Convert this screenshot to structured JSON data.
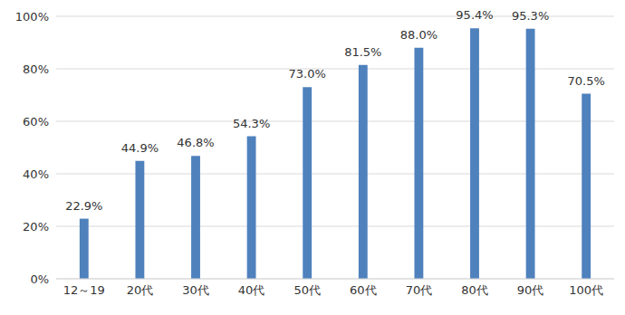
{
  "chart_data": {
    "type": "bar",
    "categories": [
      "12～19",
      "20代",
      "30代",
      "40代",
      "50代",
      "60代",
      "70代",
      "80代",
      "90代",
      "100代"
    ],
    "values": [
      22.9,
      44.9,
      46.8,
      54.3,
      73.0,
      81.5,
      88.0,
      95.4,
      95.3,
      70.5
    ],
    "value_labels": [
      "22.9%",
      "44.9%",
      "46.8%",
      "54.3%",
      "73.0%",
      "81.5%",
      "88.0%",
      "95.4%",
      "95.3%",
      "70.5%"
    ],
    "data_labels": true,
    "color": "#4f81bd",
    "ylim": [
      0,
      100
    ],
    "yticks": [
      {
        "value": 0,
        "label": "0%"
      },
      {
        "value": 20,
        "label": "20%"
      },
      {
        "value": 40,
        "label": "40%"
      },
      {
        "value": 60,
        "label": "60%"
      },
      {
        "value": 80,
        "label": "80%"
      },
      {
        "value": 100,
        "label": "100%"
      }
    ],
    "grid": true
  }
}
